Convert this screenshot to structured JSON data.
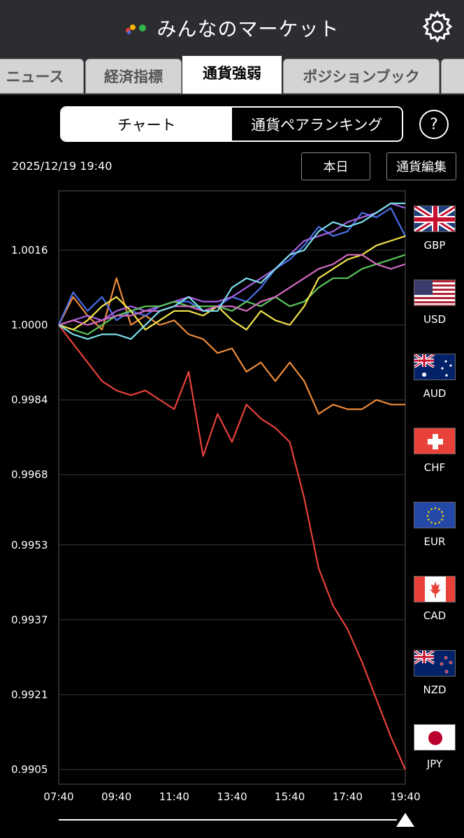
{
  "app": {
    "title": "みんなのマーケット"
  },
  "tabs": [
    {
      "label": "ニュース",
      "active": false
    },
    {
      "label": "経済指標",
      "active": false
    },
    {
      "label": "通貨強弱",
      "active": true
    },
    {
      "label": "ポジションブック",
      "active": false
    }
  ],
  "segment": {
    "chart_label": "チャート",
    "ranking_label": "通貨ペアランキング"
  },
  "help_label": "?",
  "timestamp": "2025/12/19 19:40",
  "buttons": {
    "today": "本日",
    "edit": "通貨編集"
  },
  "legend": [
    {
      "code": "GBP",
      "icon": "uk-flag-icon"
    },
    {
      "code": "USD",
      "icon": "us-flag-icon"
    },
    {
      "code": "AUD",
      "icon": "australia-flag-icon"
    },
    {
      "code": "CHF",
      "icon": "switzerland-flag-icon"
    },
    {
      "code": "EUR",
      "icon": "eu-flag-icon"
    },
    {
      "code": "CAD",
      "icon": "canada-flag-icon"
    },
    {
      "code": "NZD",
      "icon": "new-zealand-flag-icon"
    },
    {
      "code": "JPY",
      "icon": "japan-flag-icon"
    }
  ],
  "chart_data": {
    "type": "line",
    "y_ticks": [
      "1.0016",
      "1.0000",
      "0.9984",
      "0.9968",
      "0.9953",
      "0.9937",
      "0.9921",
      "0.9905"
    ],
    "x_ticks": [
      "07:40",
      "09:40",
      "11:40",
      "13:40",
      "15:40",
      "17:40",
      "19:40"
    ],
    "ylim": [
      0.9905,
      1.0028
    ],
    "grid": true,
    "x_count": 25,
    "series": [
      {
        "name": "JPY",
        "color": "#e8413a",
        "values": [
          1.0,
          0.9996,
          0.9992,
          0.9988,
          0.9986,
          0.9985,
          0.9986,
          0.9984,
          0.9982,
          0.999,
          0.9972,
          0.9981,
          0.9975,
          0.9983,
          0.998,
          0.9978,
          0.9975,
          0.9963,
          0.9948,
          0.994,
          0.9935,
          0.9928,
          0.992,
          0.9912,
          0.9905
        ]
      },
      {
        "name": "CHF",
        "color": "#ee8b3a",
        "values": [
          1.0,
          1.0006,
          1.0002,
          0.9999,
          1.001,
          1.0,
          1.0002,
          1.0,
          1.0001,
          0.9998,
          0.9997,
          0.9994,
          0.9995,
          0.999,
          0.9992,
          0.9988,
          0.9992,
          0.9988,
          0.9981,
          0.9983,
          0.9982,
          0.9982,
          0.9984,
          0.9983,
          0.9983
        ]
      },
      {
        "name": "USD",
        "color": "#4a6ee8",
        "values": [
          1.0,
          1.0007,
          1.0003,
          1.0006,
          1.0001,
          1.0003,
          1.0002,
          1.0004,
          1.0005,
          1.0005,
          1.0003,
          1.0004,
          1.0006,
          1.0005,
          1.0008,
          1.0012,
          1.0014,
          1.0017,
          1.0021,
          1.0019,
          1.002,
          1.0024,
          1.0023,
          1.0025,
          1.0019
        ]
      },
      {
        "name": "GBP",
        "color": "#a561e0",
        "values": [
          1.0,
          1.0001,
          1.0002,
          1.0001,
          1.0003,
          1.0004,
          1.0003,
          1.0004,
          1.0005,
          1.0006,
          1.0005,
          1.0005,
          1.0006,
          1.0008,
          1.001,
          1.0012,
          1.0015,
          1.0018,
          1.0019,
          1.002,
          1.0022,
          1.0023,
          1.0024,
          1.0026,
          1.0025
        ]
      },
      {
        "name": "EUR",
        "color": "#5cc45a",
        "values": [
          1.0,
          0.9999,
          0.9998,
          1.0,
          1.0002,
          1.0003,
          1.0004,
          1.0004,
          1.0005,
          1.0004,
          1.0004,
          1.0004,
          1.0003,
          1.0005,
          1.0004,
          1.0006,
          1.0004,
          1.0005,
          1.0008,
          1.001,
          1.001,
          1.0012,
          1.0013,
          1.0014,
          1.0015
        ]
      },
      {
        "name": "AUD",
        "color": "#f4e34a",
        "values": [
          1.0,
          0.9999,
          1.0001,
          1.0004,
          1.0006,
          1.0003,
          0.9999,
          1.0001,
          1.0003,
          1.0003,
          1.0002,
          1.0004,
          1.0001,
          0.9999,
          1.0003,
          1.0001,
          1.0,
          1.0004,
          1.001,
          1.0012,
          1.0014,
          1.0015,
          1.0017,
          1.0018,
          1.0019
        ]
      },
      {
        "name": "NZD",
        "color": "#d16bc2",
        "values": [
          1.0,
          1.0001,
          1.0,
          1.0001,
          1.0002,
          1.0002,
          1.0003,
          1.0003,
          1.0004,
          1.0004,
          1.0003,
          1.0004,
          1.0004,
          1.0003,
          1.0005,
          1.0006,
          1.0008,
          1.001,
          1.0012,
          1.0013,
          1.0015,
          1.0015,
          1.0013,
          1.0012,
          1.0013
        ]
      },
      {
        "name": "CAD",
        "color": "#7fdfef",
        "values": [
          1.0,
          0.9998,
          0.9997,
          0.9998,
          0.9998,
          0.9997,
          1.0,
          1.0003,
          1.0004,
          1.0006,
          1.0003,
          1.0003,
          1.0008,
          1.001,
          1.0009,
          1.0012,
          1.0015,
          1.0016,
          1.002,
          1.0022,
          1.0021,
          1.0022,
          1.0024,
          1.0026,
          1.0026
        ]
      }
    ]
  },
  "colors": {
    "header_bg": "#2b2d31",
    "tab_bg": "#d4d4d4",
    "grid": "#3a3a3a"
  }
}
